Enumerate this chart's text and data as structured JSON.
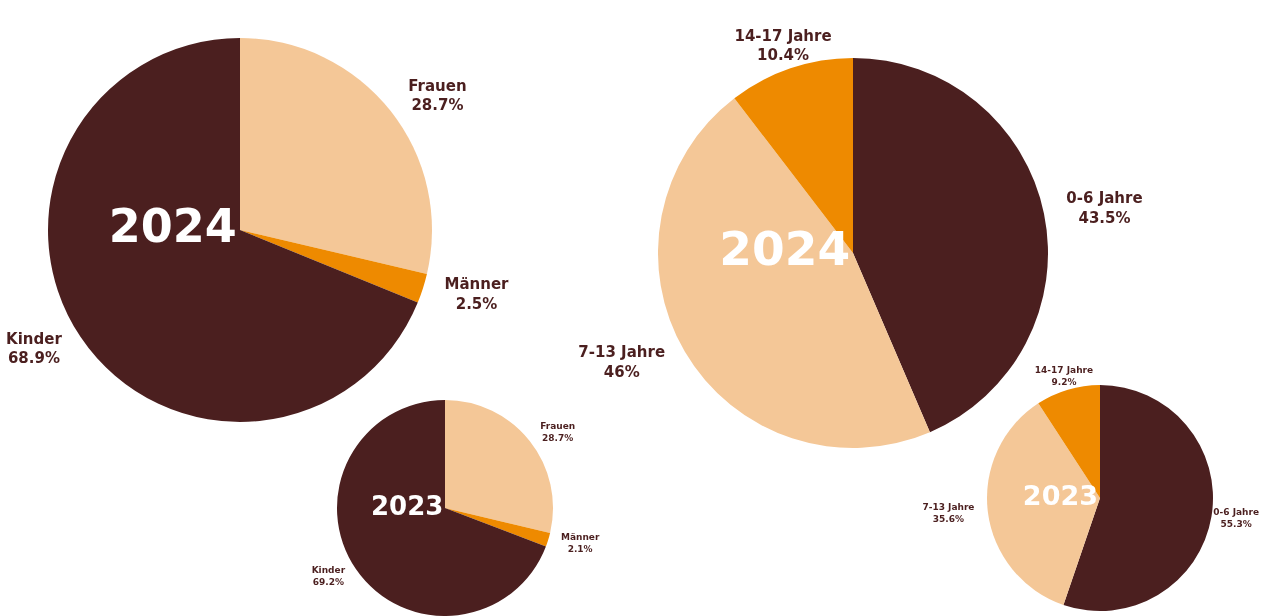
{
  "chart_data": [
    {
      "type": "pie",
      "title": "2024",
      "categories": [
        "Frauen",
        "Männer",
        "Kinder"
      ],
      "values": [
        28.7,
        2.5,
        68.9
      ],
      "colors": [
        "#f4c797",
        "#ee8a00",
        "#4b1f1f"
      ],
      "value_labels": [
        "28.7%",
        "2.5%",
        "68.9%"
      ]
    },
    {
      "type": "pie",
      "title": "2023",
      "categories": [
        "Frauen",
        "Männer",
        "Kinder"
      ],
      "values": [
        28.7,
        2.1,
        69.2
      ],
      "colors": [
        "#f4c797",
        "#ee8a00",
        "#4b1f1f"
      ],
      "value_labels": [
        "28.7%",
        "2.1%",
        "69.2%"
      ]
    },
    {
      "type": "pie",
      "title": "2024",
      "categories": [
        "0-6 Jahre",
        "7-13 Jahre",
        "14-17 Jahre"
      ],
      "values": [
        43.5,
        46,
        10.4
      ],
      "colors": [
        "#4b1f1f",
        "#f4c797",
        "#ee8a00"
      ],
      "value_labels": [
        "43.5%",
        "46%",
        "10.4%"
      ]
    },
    {
      "type": "pie",
      "title": "2023",
      "categories": [
        "0-6 Jahre",
        "7-13 Jahre",
        "14-17 Jahre"
      ],
      "values": [
        55.3,
        35.6,
        9.2
      ],
      "colors": [
        "#4b1f1f",
        "#f4c797",
        "#ee8a00"
      ],
      "value_labels": [
        "55.3%",
        "35.6%",
        "9.2%"
      ]
    }
  ]
}
